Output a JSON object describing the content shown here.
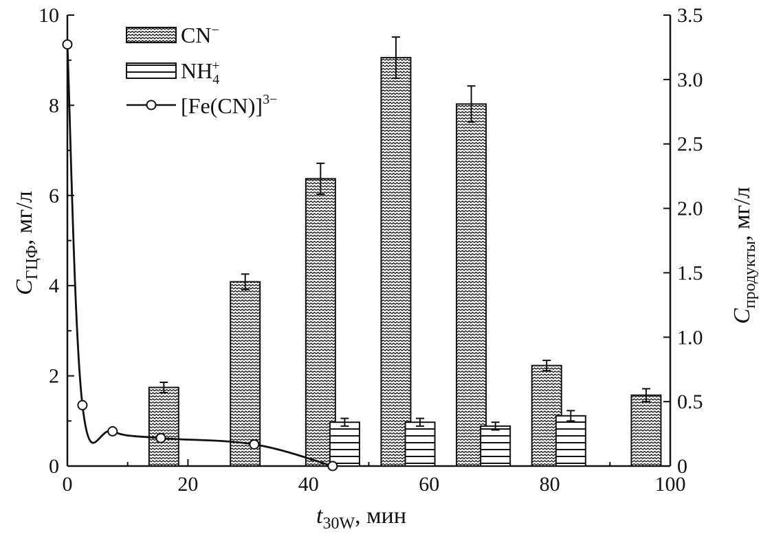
{
  "chart_data": {
    "type": "bar",
    "xlabel_main": "t",
    "xlabel_sub": "30W",
    "xlabel_unit": ", мин",
    "ylabel_left_main": "C",
    "ylabel_left_sub": "ГЦФ",
    "ylabel_left_unit": ", мг/л",
    "ylabel_right_main": "C",
    "ylabel_right_sub": "продукты",
    "ylabel_right_unit": ", мг/л",
    "xlim": [
      0,
      100
    ],
    "ylim_left": [
      0,
      10
    ],
    "ylim_right": [
      0,
      3.5
    ],
    "x_ticks": [
      "0",
      "20",
      "40",
      "60",
      "80",
      "100"
    ],
    "y_left_ticks": [
      "0",
      "2",
      "4",
      "6",
      "8",
      "10"
    ],
    "y_right_ticks": [
      "0",
      "0.5",
      "1.0",
      "1.5",
      "2.0",
      "2.5",
      "3.0",
      "3.5"
    ],
    "legend": {
      "position": "top-left",
      "cn_label": "CN",
      "cn_sup": "−",
      "nh4_label": "NH",
      "nh4_sub": "4",
      "nh4_sup": "+",
      "fe_label": "[Fe(CN)]",
      "fe_sup": "3−"
    },
    "series": [
      {
        "key": "cn",
        "axis": "right",
        "pattern": "zigzag",
        "bars": [
          {
            "x": 16,
            "value": 0.61,
            "err": 0.04
          },
          {
            "x": 29.5,
            "value": 1.43,
            "err": 0.06
          },
          {
            "x": 42,
            "value": 2.23,
            "err": 0.12
          },
          {
            "x": 54.5,
            "value": 3.17,
            "err": 0.16
          },
          {
            "x": 67,
            "value": 2.81,
            "err": 0.14
          },
          {
            "x": 79.5,
            "value": 0.78,
            "err": 0.04
          },
          {
            "x": 96,
            "value": 0.55,
            "err": 0.05
          }
        ]
      },
      {
        "key": "nh4",
        "axis": "right",
        "pattern": "hlines",
        "bars": [
          {
            "x": 46,
            "value": 0.34,
            "err": 0.03
          },
          {
            "x": 58.5,
            "value": 0.34,
            "err": 0.03
          },
          {
            "x": 71,
            "value": 0.31,
            "err": 0.03
          },
          {
            "x": 83.5,
            "value": 0.39,
            "err": 0.04
          }
        ]
      },
      {
        "key": "fe",
        "axis": "left",
        "type": "line",
        "marker": "circle",
        "x": [
          0,
          2.5,
          7.5,
          15.5,
          31,
          44
        ],
        "y": [
          9.35,
          1.35,
          0.77,
          0.62,
          0.48,
          0.0
        ]
      }
    ],
    "grid": false,
    "colors": {
      "ink": "#111111",
      "background": "#ffffff"
    }
  }
}
